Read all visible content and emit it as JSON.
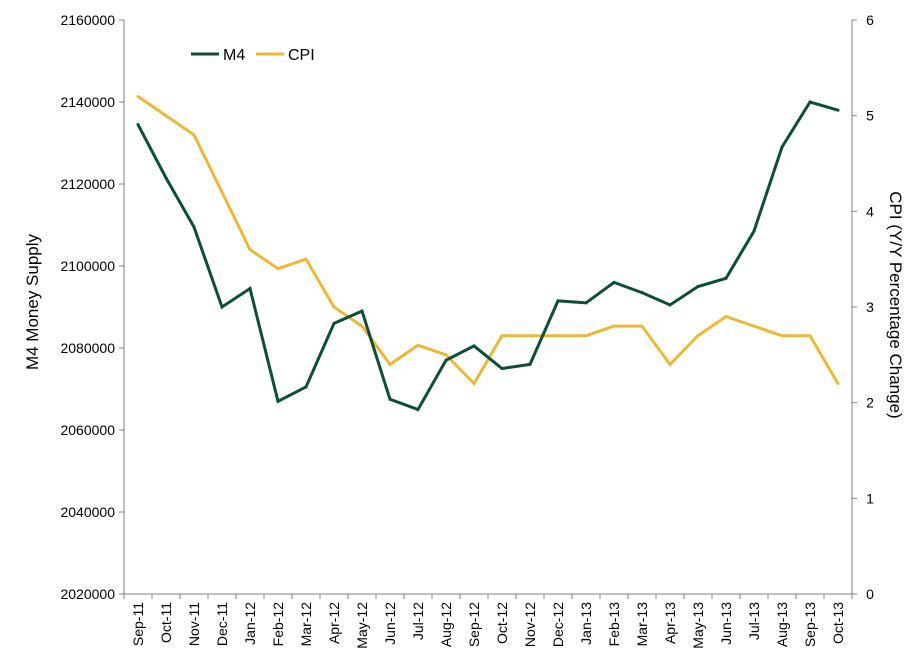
{
  "colors": {
    "m4": "#0e4d3a",
    "cpi": "#e9b93a",
    "axis": "#808080"
  },
  "chart_data": {
    "type": "line",
    "categories": [
      "Sep-11",
      "Oct-11",
      "Nov-11",
      "Dec-11",
      "Jan-12",
      "Feb-12",
      "Mar-12",
      "Apr-12",
      "May-12",
      "Jun-12",
      "Jul-12",
      "Aug-12",
      "Sep-12",
      "Oct-12",
      "Nov-12",
      "Dec-12",
      "Jan-13",
      "Feb-13",
      "Mar-13",
      "Apr-13",
      "May-13",
      "Jun-13",
      "Jul-13",
      "Aug-13",
      "Sep-13",
      "Oct-13"
    ],
    "series": [
      {
        "name": "M4",
        "axis": "left",
        "color": "#0e4d3a",
        "values": [
          2134500,
          2121500,
          2109500,
          2090000,
          2094500,
          2067000,
          2070500,
          2086000,
          2089000,
          2067500,
          2065000,
          2077000,
          2080500,
          2075000,
          2076000,
          2091500,
          2091000,
          2096000,
          2093500,
          2090500,
          2095000,
          2097000,
          2108500,
          2129000,
          2140000,
          2138000
        ]
      },
      {
        "name": "CPI",
        "axis": "right",
        "color": "#e9b93a",
        "values": [
          5.2,
          5.0,
          4.8,
          4.2,
          3.6,
          3.4,
          3.5,
          3.0,
          2.8,
          2.4,
          2.6,
          2.5,
          2.2,
          2.7,
          2.7,
          2.7,
          2.7,
          2.8,
          2.8,
          2.4,
          2.7,
          2.9,
          2.8,
          2.7,
          2.7,
          2.2
        ]
      }
    ],
    "y_left": {
      "label": "M4 Money Supply",
      "ylim": [
        2020000,
        2160000
      ],
      "ticks": [
        "2020000",
        "2040000",
        "2060000",
        "2080000",
        "2100000",
        "2120000",
        "2140000",
        "2160000"
      ]
    },
    "y_right": {
      "label": "CPI (Y/Y Percentage Change)",
      "ylim": [
        0,
        6
      ],
      "ticks": [
        "0",
        "1",
        "2",
        "3",
        "4",
        "5",
        "6"
      ]
    },
    "grid": false,
    "legend": {
      "position": "top-left",
      "entries": [
        "M4",
        "CPI"
      ]
    }
  }
}
